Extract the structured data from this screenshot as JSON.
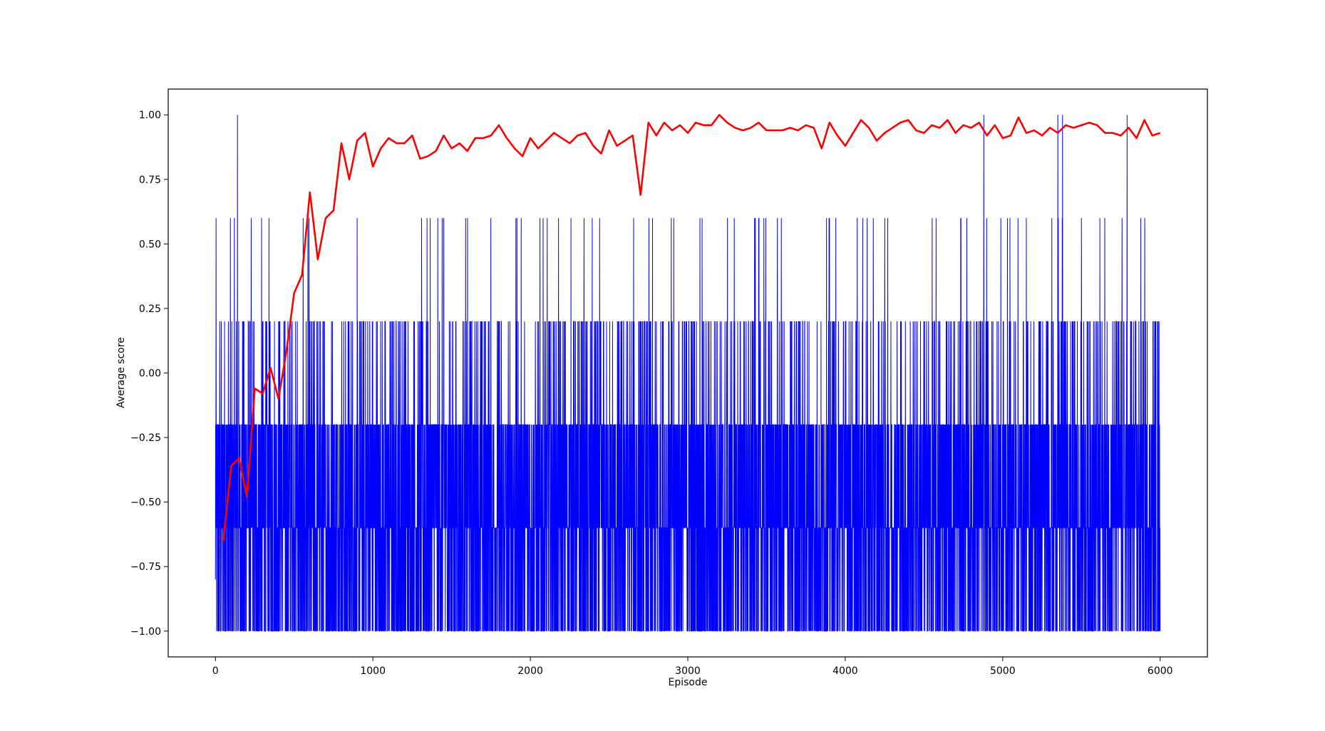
{
  "chart_data": {
    "type": "line",
    "xlabel": "Episode",
    "ylabel": "Average score",
    "xlim": [
      -300,
      6300
    ],
    "ylim": [
      -1.1,
      1.1
    ],
    "x_ticks": [
      0,
      1000,
      2000,
      3000,
      4000,
      5000,
      6000
    ],
    "x_tick_labels": [
      "0",
      "1000",
      "2000",
      "3000",
      "4000",
      "5000",
      "6000"
    ],
    "y_ticks": [
      1.0,
      0.75,
      0.5,
      0.25,
      0.0,
      -0.25,
      -0.5,
      -0.75,
      -1.0
    ],
    "y_tick_labels": [
      "1.00",
      "0.75",
      "0.50",
      "0.25",
      "0.00",
      "−0.25",
      "−0.50",
      "−0.75",
      "−1.00"
    ],
    "grid": false,
    "legend": "none",
    "series": [
      {
        "color": "#0000ff",
        "style": "thin-line",
        "description_levels": [
          -1.0,
          -0.6,
          -0.2,
          0.2,
          0.6,
          1.0
        ],
        "x_range": [
          0,
          6000
        ],
        "start_value": -0.8,
        "spikes_to_1": [
          140,
          4880,
          5350,
          5380,
          5790
        ]
      },
      {
        "color": "#ff0000",
        "style": "thick-line",
        "x": [
          50,
          100,
          150,
          200,
          250,
          300,
          350,
          400,
          450,
          500,
          550,
          600,
          650,
          700,
          750,
          800,
          850,
          900,
          950,
          1000,
          1050,
          1100,
          1150,
          1200,
          1250,
          1300,
          1350,
          1400,
          1450,
          1500,
          1550,
          1600,
          1650,
          1700,
          1750,
          1800,
          1850,
          1900,
          1950,
          2000,
          2050,
          2100,
          2150,
          2200,
          2250,
          2300,
          2350,
          2400,
          2450,
          2500,
          2550,
          2600,
          2650,
          2700,
          2750,
          2800,
          2850,
          2900,
          2950,
          3000,
          3050,
          3100,
          3150,
          3200,
          3250,
          3300,
          3350,
          3400,
          3450,
          3500,
          3550,
          3600,
          3650,
          3700,
          3750,
          3800,
          3850,
          3900,
          3950,
          4000,
          4050,
          4100,
          4150,
          4200,
          4250,
          4300,
          4350,
          4400,
          4450,
          4500,
          4550,
          4600,
          4650,
          4700,
          4750,
          4800,
          4850,
          4900,
          4950,
          5000,
          5050,
          5100,
          5150,
          5200,
          5250,
          5300,
          5350,
          5400,
          5450,
          5500,
          5550,
          5600,
          5650,
          5700,
          5750,
          5800,
          5850,
          5900,
          5950,
          6000
        ],
        "y": [
          -0.65,
          -0.36,
          -0.33,
          -0.48,
          -0.06,
          -0.08,
          0.02,
          -0.1,
          0.08,
          0.31,
          0.38,
          0.7,
          0.44,
          0.6,
          0.63,
          0.89,
          0.75,
          0.9,
          0.93,
          0.8,
          0.87,
          0.91,
          0.89,
          0.89,
          0.92,
          0.83,
          0.84,
          0.86,
          0.92,
          0.87,
          0.89,
          0.86,
          0.91,
          0.91,
          0.92,
          0.96,
          0.91,
          0.87,
          0.84,
          0.91,
          0.87,
          0.9,
          0.93,
          0.91,
          0.89,
          0.92,
          0.93,
          0.88,
          0.85,
          0.94,
          0.88,
          0.9,
          0.92,
          0.69,
          0.97,
          0.92,
          0.97,
          0.94,
          0.96,
          0.93,
          0.97,
          0.96,
          0.96,
          1.0,
          0.97,
          0.95,
          0.94,
          0.95,
          0.97,
          0.94,
          0.94,
          0.94,
          0.95,
          0.94,
          0.96,
          0.95,
          0.87,
          0.97,
          0.92,
          0.88,
          0.93,
          0.98,
          0.95,
          0.9,
          0.93,
          0.95,
          0.97,
          0.98,
          0.94,
          0.93,
          0.96,
          0.95,
          0.98,
          0.93,
          0.96,
          0.95,
          0.97,
          0.92,
          0.96,
          0.91,
          0.92,
          0.99,
          0.93,
          0.94,
          0.92,
          0.95,
          0.93,
          0.96,
          0.95,
          0.96,
          0.97,
          0.96,
          0.93,
          0.93,
          0.92,
          0.95,
          0.91,
          0.98,
          0.92,
          0.93
        ]
      }
    ]
  }
}
